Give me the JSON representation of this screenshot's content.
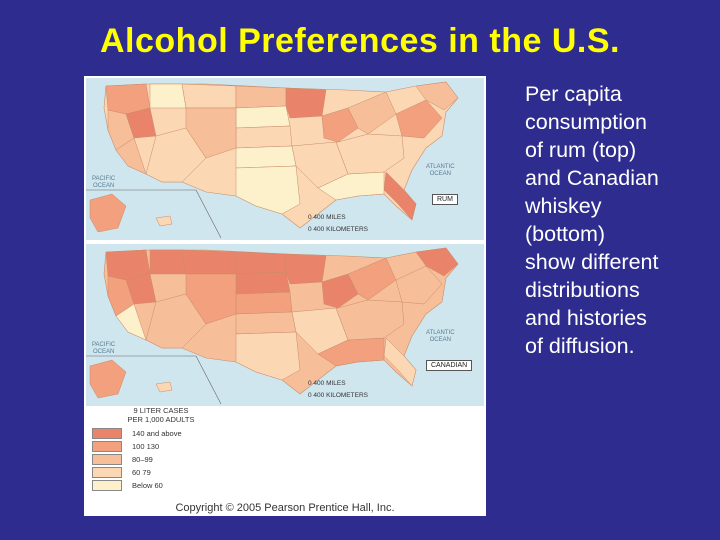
{
  "slide": {
    "title": "Alcohol Preferences in the U.S.",
    "side_text": "Per capita\nconsumption\nof rum (top)\nand Canadian\nwhiskey\n(bottom)\nshow different\ndistributions\nand histories\nof diffusion."
  },
  "figure": {
    "top_map": {
      "label": "RUM",
      "pacific": "PACIFIC\nOCEAN",
      "atlantic": "ATLANTIC\nOCEAN",
      "scale_miles": "0        400 MILES",
      "scale_km": "0    400 KILOMETERS"
    },
    "bottom_map": {
      "label": "CANADIAN",
      "pacific": "PACIFIC\nOCEAN",
      "atlantic": "ATLANTIC\nOCEAN",
      "scale_miles": "0        400 MILES",
      "scale_km": "0    400 KILOMETERS"
    },
    "legend": {
      "heading1": "9 LITER CASES",
      "heading2": "PER 1,000 ADULTS",
      "items": [
        {
          "label": "140 and above",
          "color": "#e9846a"
        },
        {
          "label": "100  130",
          "color": "#f2a07e"
        },
        {
          "label": "80–99",
          "color": "#f7bf99"
        },
        {
          "label": "60  79",
          "color": "#fbd7b4"
        },
        {
          "label": "Below 60",
          "color": "#fdf1cc"
        }
      ]
    },
    "copyright": "Copyright © 2005 Pearson Prentice Hall, Inc."
  }
}
